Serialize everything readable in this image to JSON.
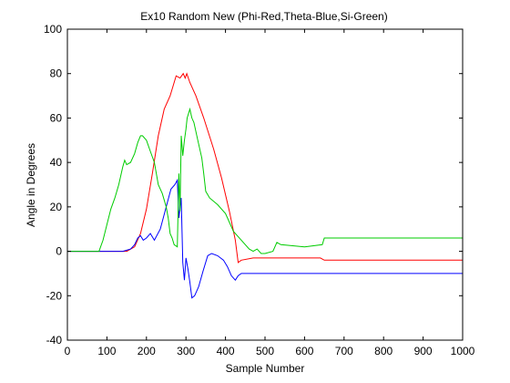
{
  "chart_data": {
    "type": "line",
    "title": "Ex10 Random New (Phi-Red,Theta-Blue,Si-Green)",
    "xlabel": "Sample Number",
    "ylabel": "Angle in Degrees",
    "xlim": [
      0,
      1000
    ],
    "ylim": [
      -40,
      100
    ],
    "xticks": [
      0,
      100,
      200,
      300,
      400,
      500,
      600,
      700,
      800,
      900,
      1000
    ],
    "yticks": [
      -40,
      -20,
      0,
      20,
      40,
      60,
      80,
      100
    ],
    "grid": false,
    "legend": "none",
    "series": [
      {
        "color": "#ff0000",
        "x": [
          0,
          150,
          170,
          185,
          200,
          215,
          230,
          245,
          260,
          270,
          275,
          285,
          293,
          298,
          302,
          310,
          325,
          345,
          370,
          390,
          410,
          425,
          432,
          440,
          470,
          500,
          560,
          640,
          650,
          700,
          800,
          900,
          1000
        ],
        "y": [
          0,
          0,
          2,
          8,
          19,
          35,
          52,
          64,
          70,
          76,
          79,
          78,
          80,
          78,
          80,
          76,
          70,
          60,
          46,
          33,
          18,
          5,
          -5,
          -4,
          -3,
          -3,
          -3,
          -3,
          -4,
          -4,
          -4,
          -4,
          -4
        ]
      },
      {
        "color": "#0000ff",
        "x": [
          0,
          140,
          160,
          170,
          178,
          185,
          192,
          200,
          210,
          220,
          235,
          250,
          262,
          272,
          278,
          282,
          288,
          292,
          296,
          300,
          305,
          310,
          315,
          322,
          332,
          343,
          355,
          365,
          380,
          395,
          405,
          415,
          425,
          432,
          440,
          470,
          500,
          600,
          650,
          700,
          800,
          900,
          1000
        ],
        "y": [
          0,
          0,
          1,
          3,
          6,
          7,
          5,
          6,
          8,
          5,
          10,
          20,
          28,
          30,
          32,
          15,
          24,
          -5,
          -13,
          -3,
          -8,
          -14,
          -21,
          -20,
          -16,
          -9,
          -2,
          -1,
          -2,
          -4,
          -7,
          -11,
          -13,
          -11,
          -10,
          -10,
          -10,
          -10,
          -10,
          -10,
          -10,
          -10,
          -10
        ]
      },
      {
        "color": "#00cc00",
        "x": [
          0,
          80,
          90,
          100,
          110,
          120,
          130,
          140,
          145,
          150,
          160,
          170,
          178,
          185,
          190,
          200,
          210,
          220,
          230,
          240,
          250,
          255,
          260,
          265,
          270,
          278,
          282,
          285,
          288,
          292,
          296,
          300,
          303,
          310,
          315,
          320,
          330,
          340,
          345,
          350,
          360,
          380,
          400,
          420,
          440,
          460,
          470,
          480,
          490,
          500,
          520,
          530,
          540,
          600,
          645,
          650,
          700,
          800,
          900,
          1000
        ],
        "y": [
          0,
          0,
          5,
          12,
          19,
          24,
          30,
          38,
          41,
          39,
          40,
          44,
          49,
          52,
          52,
          50,
          45,
          40,
          30,
          26,
          20,
          15,
          8,
          6,
          3,
          2,
          35,
          18,
          52,
          43,
          50,
          55,
          60,
          64,
          60,
          58,
          50,
          42,
          35,
          27,
          24,
          21,
          17,
          9,
          5,
          1,
          0,
          1,
          -1,
          -1,
          0,
          4,
          3,
          2,
          3,
          6,
          6,
          6,
          6,
          6
        ]
      }
    ]
  }
}
